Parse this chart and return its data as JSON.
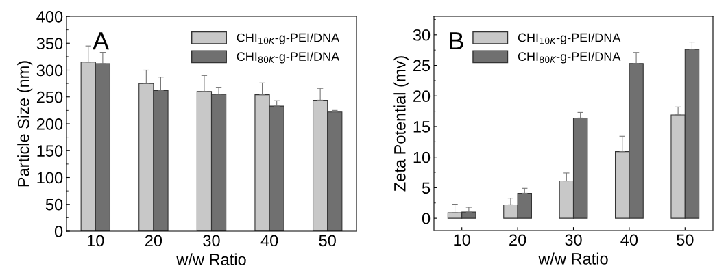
{
  "chart_data": [
    {
      "type": "bar",
      "categories": [
        "10",
        "20",
        "30",
        "40",
        "50"
      ],
      "xlabel": "w/w Ratio",
      "ylabel": "Particle Size (nm)",
      "ylim": [
        0,
        400
      ],
      "yticks": [
        0,
        50,
        100,
        150,
        200,
        250,
        300,
        350,
        400
      ],
      "legend": "top right",
      "annotations": [
        "A"
      ],
      "series": [
        {
          "name": "CHI$_{10K}$-g-PEI/DNA",
          "color": "#c8c8c8",
          "values": [
            315,
            275,
            260,
            254,
            244
          ],
          "errors": [
            [
              315,
              345
            ],
            [
              275,
              300
            ],
            [
              260,
              290
            ],
            [
              254,
              276
            ],
            [
              244,
              266
            ]
          ]
        },
        {
          "name": "CHI$_{80K}$-g-PEI/DNA",
          "color": "#707070",
          "values": [
            312,
            262,
            255,
            233,
            222
          ],
          "errors": [
            [
              312,
              333
            ],
            [
              262,
              287
            ],
            [
              255,
              268
            ],
            [
              233,
              243
            ],
            [
              222,
              225
            ]
          ]
        }
      ]
    },
    {
      "type": "bar",
      "categories": [
        "10",
        "20",
        "30",
        "40",
        "50"
      ],
      "xlabel": "w/w Ratio",
      "ylabel": "Zeta Potential (mv)",
      "ylim": [
        -2,
        33
      ],
      "yticks": [
        0,
        5,
        10,
        15,
        20,
        25,
        30
      ],
      "legend": "top left",
      "annotations": [
        "B"
      ],
      "series": [
        {
          "name": "CHI$_{10K}$-g-PEI/DNA",
          "color": "#c8c8c8",
          "values": [
            0.9,
            2.2,
            6.1,
            10.9,
            16.9
          ],
          "errors": [
            [
              0.9,
              2.3
            ],
            [
              2.2,
              3.3
            ],
            [
              6.1,
              7.4
            ],
            [
              10.9,
              13.4
            ],
            [
              16.9,
              18.2
            ]
          ]
        },
        {
          "name": "CHI$_{80K}$-g-PEI/DNA",
          "color": "#707070",
          "values": [
            1.0,
            4.1,
            16.4,
            25.3,
            27.6
          ],
          "errors": [
            [
              1.0,
              1.8
            ],
            [
              4.1,
              4.9
            ],
            [
              16.4,
              17.3
            ],
            [
              25.3,
              27.1
            ],
            [
              27.6,
              28.8
            ]
          ]
        }
      ]
    }
  ]
}
